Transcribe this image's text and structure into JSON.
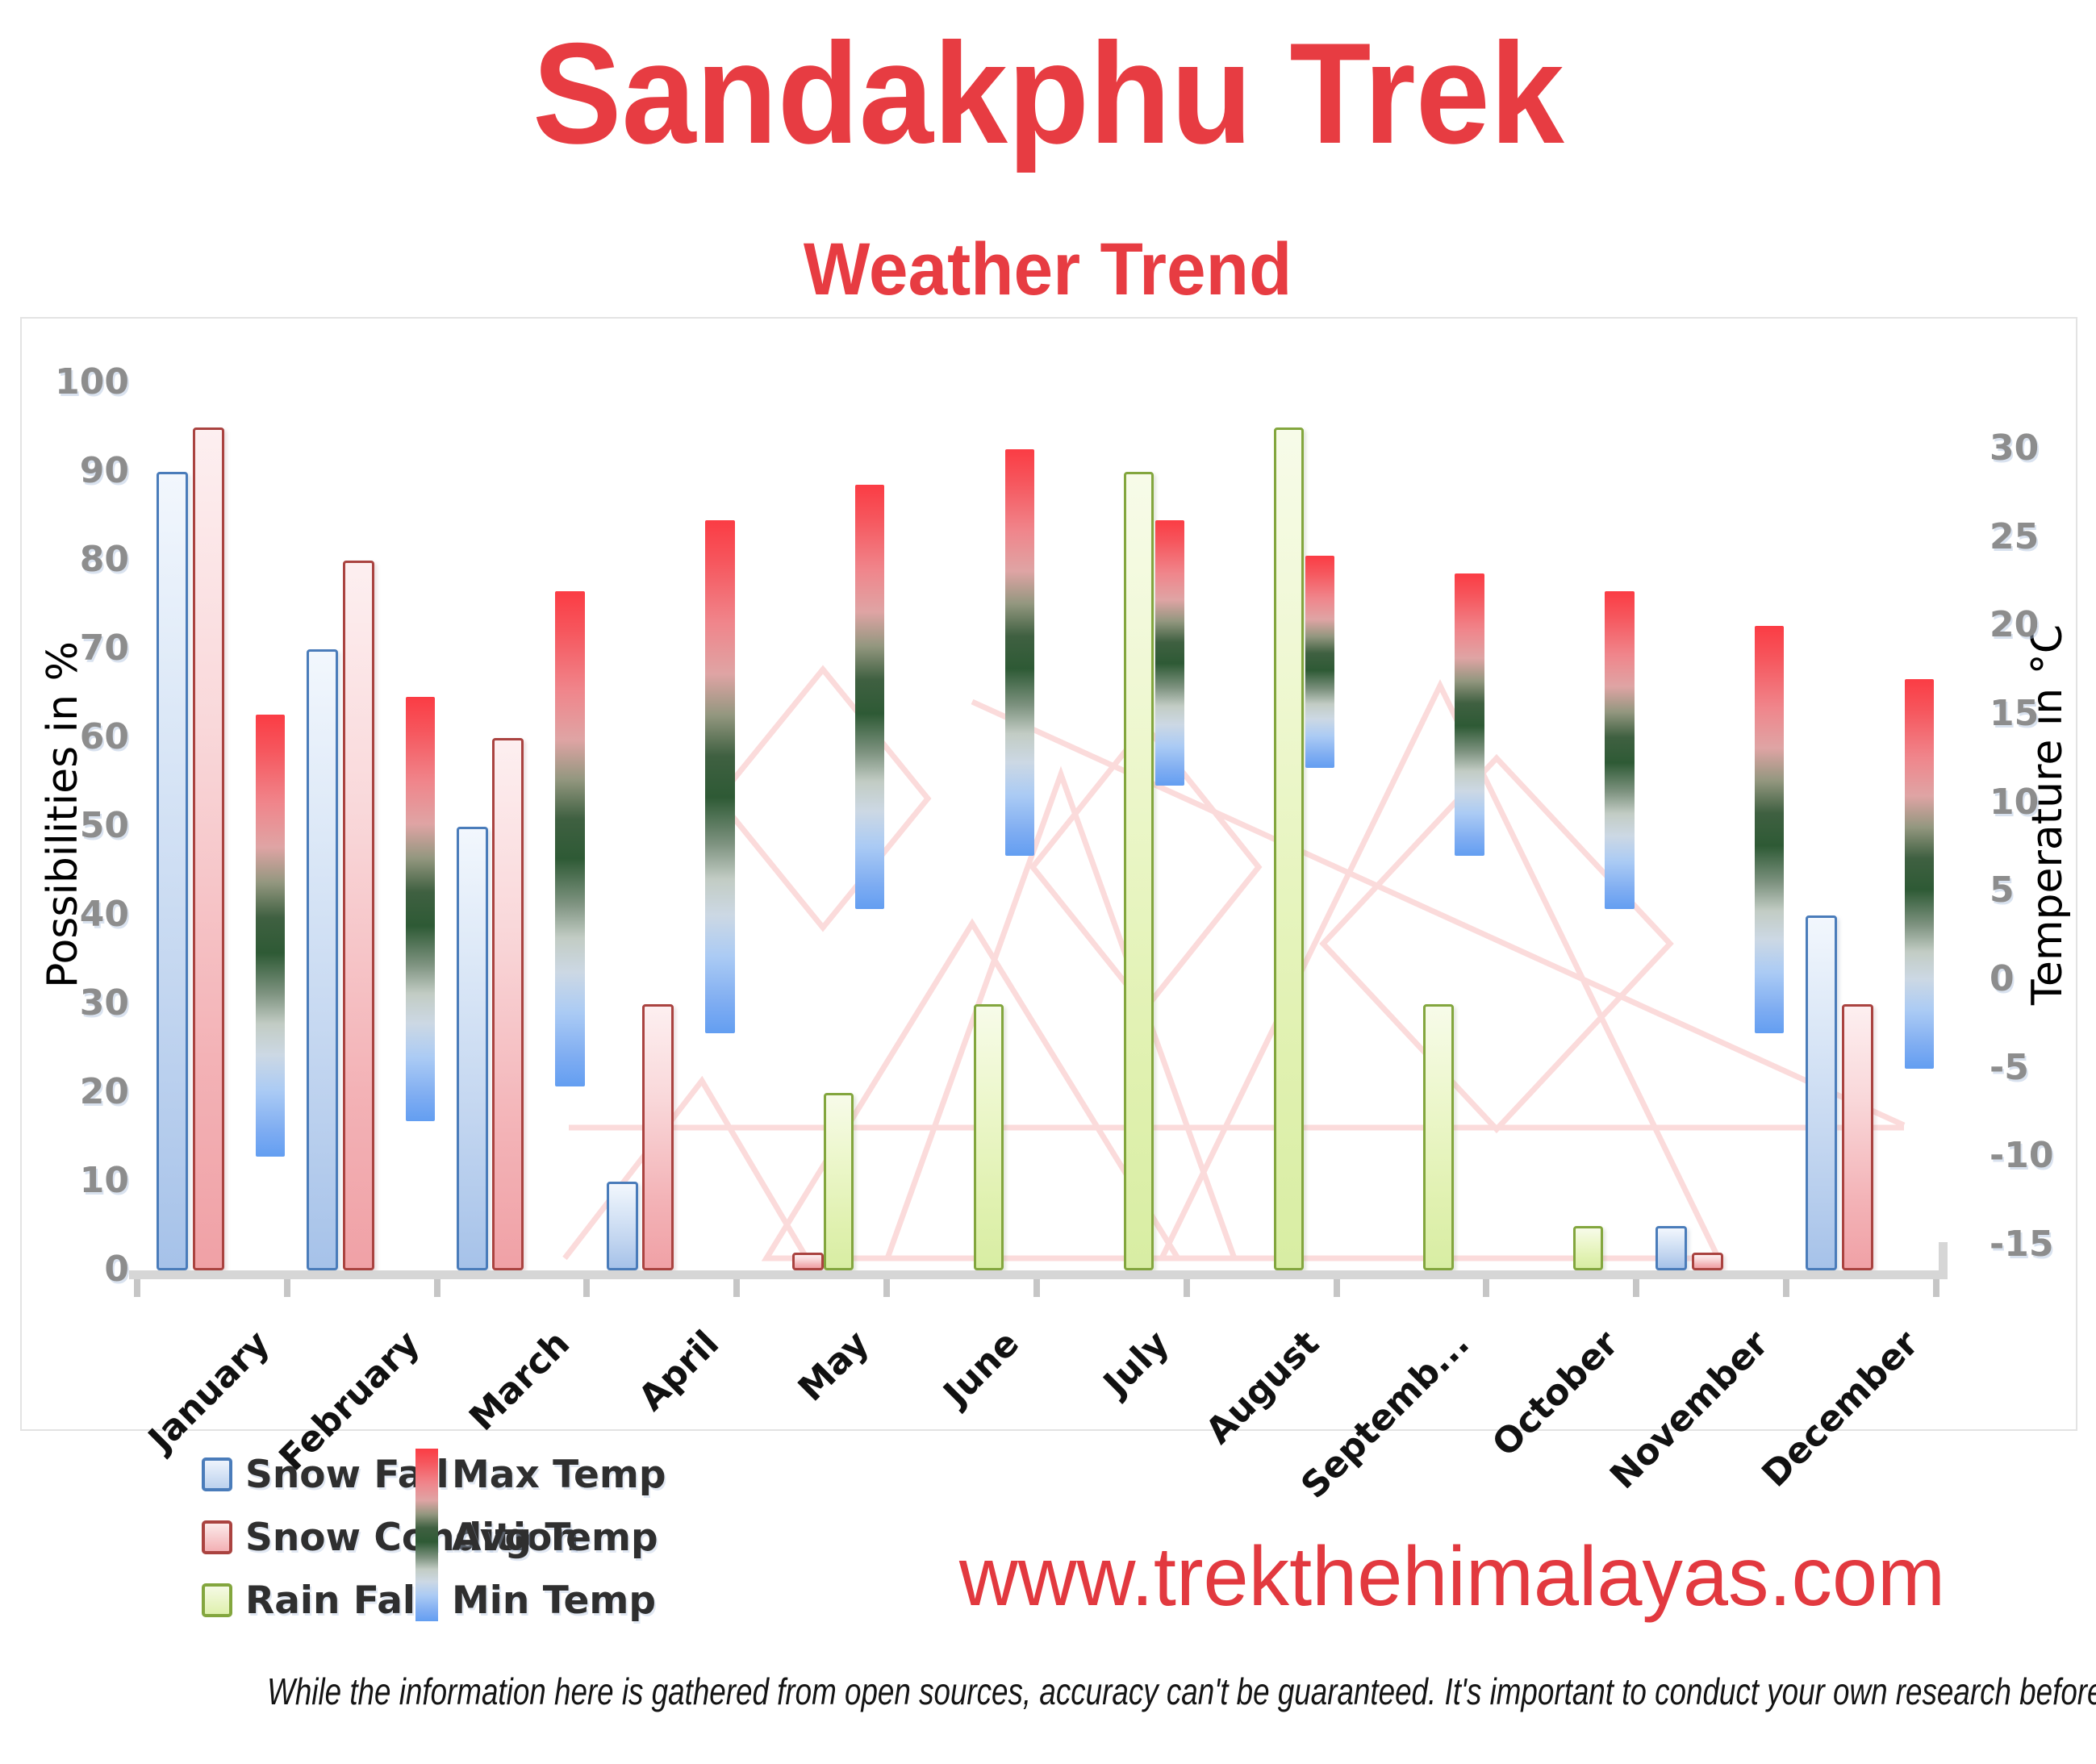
{
  "page": {
    "title": "Sandakphu Trek",
    "subtitle": "Weather Trend",
    "website": "www.trekthehimalayas.com",
    "disclaimer": "While the information here is gathered from open sources, accuracy can't be guaranteed. It's important to conduct your own research before making any decisions."
  },
  "colors": {
    "accent_red": "#e73c42",
    "axis_text_gray": "#8d8d8d",
    "snow_fall_border": "#4a7cba",
    "snow_condition_border": "#aa4340",
    "rain_fall_border": "#83a63e",
    "temp_max_red": "#fb3c44",
    "temp_avg_green": "#2e5a35",
    "temp_min_blue": "#639ef1",
    "watermark_pink": "#fbdbdb"
  },
  "chart_data": {
    "type": "bar",
    "title": "Sandakphu Trek — Weather Trend",
    "categories": [
      "January",
      "February",
      "March",
      "April",
      "May",
      "June",
      "July",
      "August",
      "September",
      "October",
      "November",
      "December"
    ],
    "categories_display": [
      "January",
      "February",
      "March",
      "April",
      "May",
      "June",
      "July",
      "August",
      "Septemb...",
      "October",
      "November",
      "December"
    ],
    "left_axis": {
      "label": "Possibilities in %",
      "min": 0,
      "max": 100,
      "step": 10
    },
    "right_axis": {
      "label": "Temperature in °C",
      "min": -15,
      "max": 30,
      "step": 5
    },
    "grid": false,
    "legend_position": "bottom-left",
    "series": [
      {
        "name": "Snow Fall",
        "axis": "left",
        "unit": "%",
        "values": [
          90,
          70,
          50,
          10,
          0,
          0,
          0,
          0,
          0,
          0,
          5,
          40
        ]
      },
      {
        "name": "Snow Condition",
        "axis": "left",
        "unit": "%",
        "values": [
          95,
          80,
          60,
          30,
          2,
          0,
          0,
          0,
          0,
          0,
          2,
          30
        ]
      },
      {
        "name": "Rain Fall",
        "axis": "left",
        "unit": "%",
        "values": [
          0,
          0,
          0,
          0,
          20,
          30,
          90,
          95,
          30,
          5,
          0,
          0
        ]
      },
      {
        "name": "Max Temp",
        "axis": "right",
        "unit": "°C",
        "values": [
          15,
          16,
          22,
          26,
          28,
          30,
          26,
          24,
          23,
          22,
          20,
          17
        ]
      },
      {
        "name": "Avg Temp",
        "axis": "right",
        "unit": "°C",
        "values": [
          2.5,
          4,
          8,
          11.5,
          16,
          18.5,
          18.5,
          18,
          15,
          13,
          8.5,
          6
        ]
      },
      {
        "name": "Min Temp",
        "axis": "right",
        "unit": "°C",
        "values": [
          -10,
          -8,
          -6,
          -3,
          4,
          7,
          11,
          12,
          7,
          4,
          -3,
          -5
        ]
      }
    ],
    "temp_bar_note": "Max/Avg/Min Temp are drawn as one floating gradient column per month: red top = Max Temp, dark green middle = Avg Temp, blue bottom = Min Temp",
    "legend": [
      {
        "label": "Snow Fall",
        "swatch": "blue-square"
      },
      {
        "label": "Snow Condition",
        "swatch": "pink-square"
      },
      {
        "label": "Rain Fall",
        "swatch": "green-square"
      },
      {
        "label": "Max Temp",
        "swatch": "gradient-top-red"
      },
      {
        "label": "Avg Temp",
        "swatch": "gradient-mid-green"
      },
      {
        "label": "Min Temp",
        "swatch": "gradient-bottom-blue"
      }
    ]
  }
}
